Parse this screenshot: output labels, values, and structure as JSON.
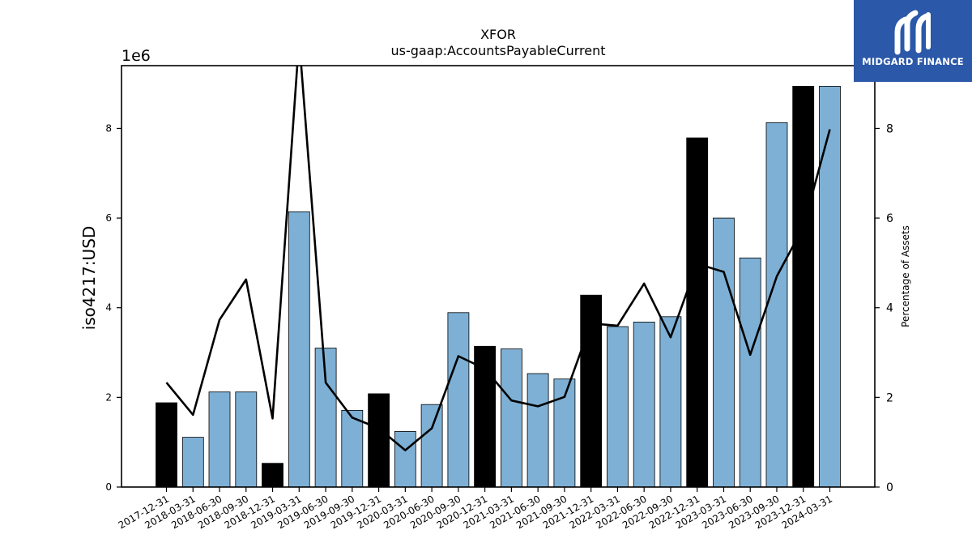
{
  "chart_data": {
    "type": "bar",
    "title": "XFOR",
    "subtitle": "us-gaap:AccountsPayableCurrent",
    "ylabel": "iso4217:USD",
    "y_scale_label": "1e6",
    "y2label": "Percentage of Assets",
    "ylim": [
      0,
      9400000
    ],
    "y2lim": [
      0,
      9.4
    ],
    "yticks": [
      0,
      2,
      4,
      6,
      8
    ],
    "y2ticks": [
      0,
      2,
      4,
      6,
      8
    ],
    "categories": [
      "2017-12-31",
      "2018-03-31",
      "2018-06-30",
      "2018-09-30",
      "2018-12-31",
      "2019-03-31",
      "2019-06-30",
      "2019-09-30",
      "2019-12-31",
      "2020-03-31",
      "2020-06-30",
      "2020-09-30",
      "2020-12-31",
      "2021-03-31",
      "2021-06-30",
      "2021-09-30",
      "2021-12-31",
      "2022-03-31",
      "2022-06-30",
      "2022-09-30",
      "2022-12-31",
      "2023-03-31",
      "2023-06-30",
      "2023-09-30",
      "2023-12-31",
      "2024-03-31"
    ],
    "values": [
      1880000,
      1110000,
      2120000,
      2120000,
      530000,
      6140000,
      3100000,
      1710000,
      2080000,
      1240000,
      1840000,
      3890000,
      3140000,
      3080000,
      2530000,
      2410000,
      4280000,
      3580000,
      3680000,
      3800000,
      7790000,
      6000000,
      5110000,
      8130000,
      8940000,
      8940000
    ],
    "bar_highlight": [
      true,
      false,
      false,
      false,
      true,
      false,
      false,
      false,
      true,
      false,
      false,
      false,
      true,
      false,
      false,
      false,
      true,
      false,
      false,
      false,
      true,
      false,
      false,
      false,
      true,
      false
    ],
    "series": [
      {
        "values": [
          2.33,
          1.61,
          3.73,
          4.63,
          1.53,
          10.0,
          2.33,
          1.55,
          1.31,
          0.82,
          1.31,
          2.92,
          2.64,
          1.93,
          1.8,
          2.01,
          3.65,
          3.6,
          4.54,
          3.34,
          4.98,
          4.8,
          2.95,
          4.7,
          5.8,
          7.98
        ]
      }
    ],
    "colors": {
      "bar": "#7eb0d5",
      "bar_highlight": "#000000",
      "line": "#000000"
    }
  },
  "logo": {
    "text": "MIDGARD FINANCE"
  }
}
